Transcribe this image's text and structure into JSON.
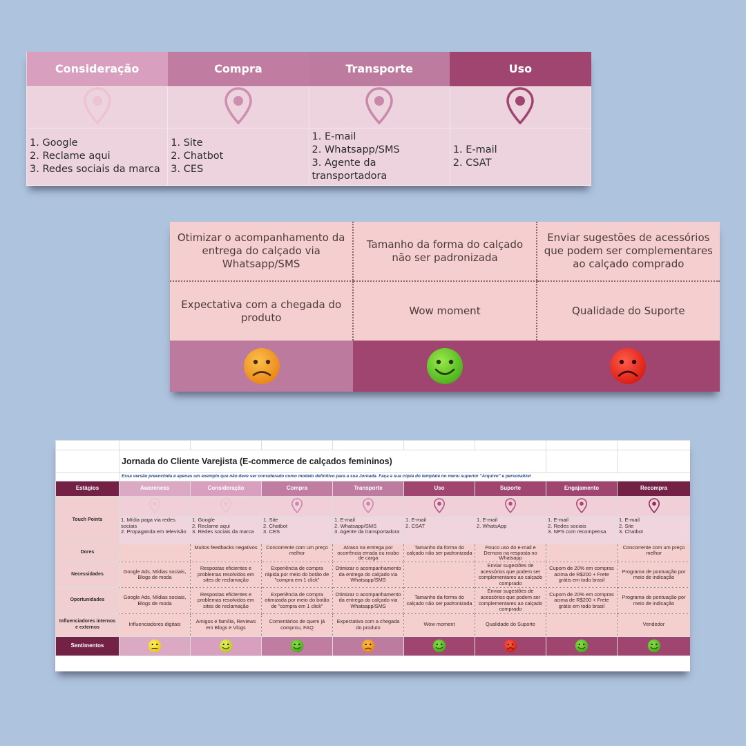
{
  "colors": {
    "stage_awareness": "#dba9c3",
    "stage_consideracao": "#d99fbe",
    "stage_compra": "#c17ca1",
    "stage_transporte": "#bd7ba0",
    "stage_uso": "#a0456f",
    "stage_suporte": "#a0456f",
    "stage_engajamento": "#a0456f",
    "stage_recompra": "#732246",
    "pin_light": "#ebc3d3",
    "pin_mid": "#d39ab7",
    "pin_dark": "#b0537f",
    "pin_darkest": "#8a2d58",
    "sad": "#e83a2a",
    "neutral": "#f0a52a",
    "happy": "#62cc2b",
    "content_bg": "#f5cece"
  },
  "panel1": {
    "stages": [
      {
        "name": "Consideração",
        "bg": "#d89fbe",
        "pin": "#ebc3d3",
        "tp": [
          "1. Google",
          "2. Reclame aqui",
          "3. Redes sociais da marca"
        ]
      },
      {
        "name": "Compra",
        "bg": "#c17ca1",
        "pin": "#cf8db0",
        "tp": [
          "1. Site",
          "2. Chatbot",
          "3. CES"
        ]
      },
      {
        "name": "Transporte",
        "bg": "#bd7ba0",
        "pin": "#c987aa",
        "tp": [
          "1. E-mail",
          "2. Whatsapp/SMS",
          "3. Agente da transportadora"
        ]
      },
      {
        "name": "Uso",
        "bg": "#a0456f",
        "pin": "#b0537f",
        "tp": [
          "1. E-mail",
          "2. CSAT"
        ]
      }
    ]
  },
  "panel2": {
    "row1": [
      "Otimizar o acompanhamento da entrega do calçado via Whatsapp/SMS",
      "Tamanho da forma do calçado não ser padronizada",
      "Enviar sugestões de acessórios que podem ser complementares ao calçado comprado"
    ],
    "row2": [
      "Expectativa com a chegada do produto",
      "Wow moment",
      "Qualidade do Suporte"
    ],
    "row3": [
      {
        "mood": "neutral",
        "bg": "#bc7a9e"
      },
      {
        "mood": "happy",
        "bg": "#a0456f"
      },
      {
        "mood": "sad",
        "bg": "#a0456f"
      }
    ]
  },
  "panel3": {
    "title": "Jornada do Cliente Varejista (E-commerce de calçados femininos)",
    "note": "Essa versão preenchida é apenas um exemplo que não deve ser considerado como modelo definitivo para a sua Jornada. Faça a sua cópia do template no menu superior \"Arquivo\" e personalize!",
    "row_labels": {
      "estagios": "Estágios",
      "touch": "Touch Points",
      "dores": "Dores",
      "necessidades": "Necessidades",
      "oportunidades": "Oportunidades",
      "influenciadores": "Influenciadores internos e externos",
      "sentimentos": "Sentimentos"
    },
    "stages": [
      {
        "name": "Awareness",
        "bg": "#dba9c3",
        "pin": "#ebc3d3",
        "tp": "1. Mídia paga via redes sociais\n2. Propaganda em televisão",
        "dores": "",
        "nec": "Google Ads, Mídias sociais, Blogs de moda",
        "op": "Google Ads, Mídias sociais, Blogs de moda",
        "inf": "Influenciadores digitais",
        "mood": "neutral-yellow",
        "sbg": "#dba9c3"
      },
      {
        "name": "Consideração",
        "bg": "#d99fbe",
        "pin": "#ebc3d3",
        "tp": "1. Google\n2. Reclame aqui\n3. Redes sociais da marca",
        "dores": "Muitos feedbacks negativos",
        "nec": "Respostas eficientes e problemas resolvidos em sites de reclamação",
        "op": "Respostas eficientes e problemas resolvidos em sites de reclamação",
        "inf": "Amigos e família, Reviews em Blogs e Vlogs",
        "mood": "happy-yellow",
        "sbg": "#d99fbe"
      },
      {
        "name": "Compra",
        "bg": "#c17ca1",
        "pin": "#c987aa",
        "tp": "1. Site\n2. Chatbot\n3. CES",
        "dores": "Concorrente com um preço melhor",
        "nec": "Experiência de compra rápida por meio do botão de \"compra em 1 click\"",
        "op": "Experiência de compra otimizada por meio do botão de \"compra em 1 click\"",
        "inf": "Comentários de quem já comprou, FAQ",
        "mood": "happy",
        "sbg": "#c17ca1"
      },
      {
        "name": "Transporte",
        "bg": "#bd7ba0",
        "pin": "#c987aa",
        "tp": "1. E-mail\n2. Whatsapp/SMS\n3. Agente da transportadora",
        "dores": "Atraso na entrega por ocorrência errada ou roubo de carga",
        "nec": "Otimizar o acompanhamento da entrega do calçado via Whatsapp/SMS",
        "op": "Otimizar o acompanhamento da entrega do calçado via Whatsapp/SMS",
        "inf": "Expectativa com a chegada do produto",
        "mood": "neutral",
        "sbg": "#bd7ba0"
      },
      {
        "name": "Uso",
        "bg": "#a0456f",
        "pin": "#b0537f",
        "tp": "1. E-mail\n2. CSAT",
        "dores": "Tamanho da forma do calçado não ser padronizada",
        "nec": "",
        "op": "Tamanho da forma do calçado não ser padronizada",
        "inf": "Wow moment",
        "mood": "happy",
        "sbg": "#a0456f"
      },
      {
        "name": "Suporte",
        "bg": "#a0456f",
        "pin": "#b0537f",
        "tp": "1. E-mail\n2. WhatsApp",
        "dores": "Pouco uso do e-mail e Demora na resposta no Whatsapp",
        "nec": "Enviar sugestões de acessórios que podem ser complementares ao calçado comprado",
        "op": "Enviar sugestões de acessórios que podem ser complementares ao calçado comprado",
        "inf": "Qualidade do Suporte",
        "mood": "sad",
        "sbg": "#a0456f"
      },
      {
        "name": "Engajamento",
        "bg": "#a0456f",
        "pin": "#a8466f",
        "tp": "1. E-mail\n2. Redes sociais\n3. NPS com recompensa",
        "dores": "",
        "nec": "Cupom de 20% em compras acima de R$200 + Frete grátis em todo brasil",
        "op": "Cupom de 20% em compras acima de R$200 + Frete grátis em todo brasil",
        "inf": "",
        "mood": "happy",
        "sbg": "#a0456f"
      },
      {
        "name": "Recompra",
        "bg": "#732246",
        "pin": "#8a2d58",
        "tp": "1. E-mail\n2. Site\n3. Chatbot",
        "dores": "Concorrente com um preço melhor",
        "nec": "Programa de pontuação por meio de indicação",
        "op": "Programa de pontuação por meio de indicação",
        "inf": "Vendedor",
        "mood": "happy",
        "sbg": "#a0456f"
      }
    ]
  }
}
